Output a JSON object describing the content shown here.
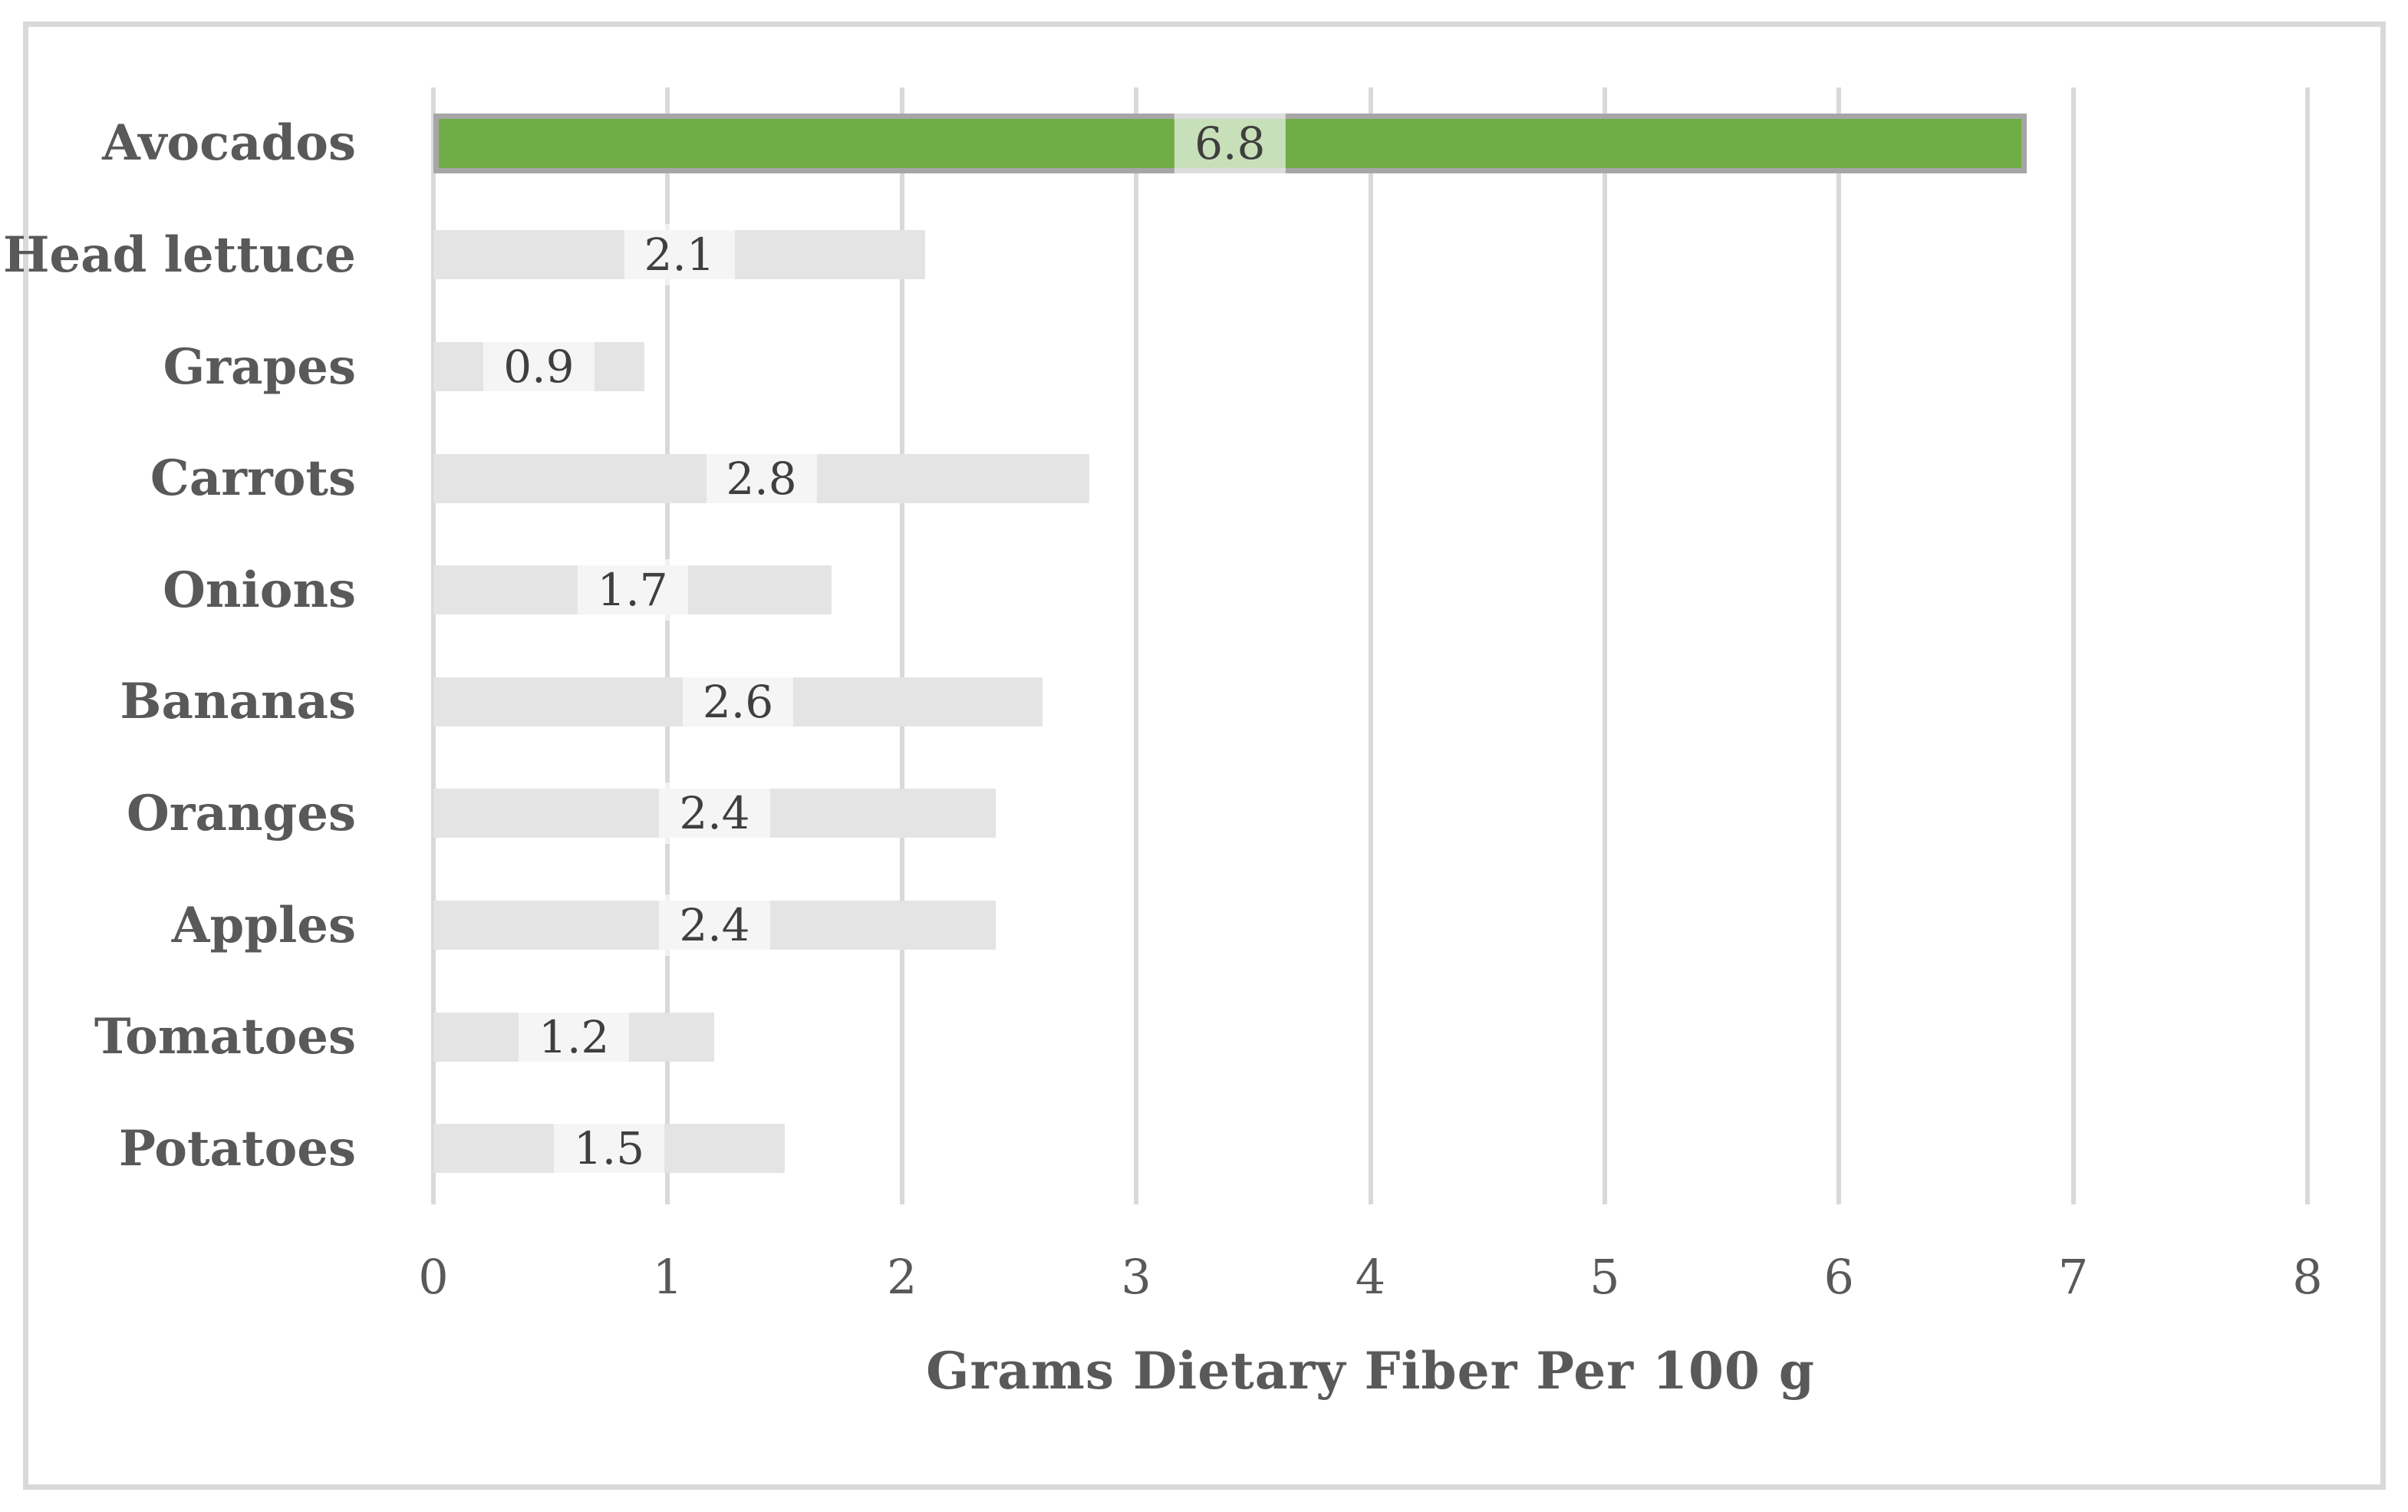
{
  "chart_data": {
    "type": "bar",
    "orientation": "horizontal",
    "xlabel": "Grams Dietary Fiber Per 100 g",
    "categories": [
      "Avocados",
      "Head lettuce",
      "Grapes",
      "Carrots",
      "Onions",
      "Bananas",
      "Oranges",
      "Apples",
      "Tomatoes",
      "Potatoes"
    ],
    "values": [
      6.8,
      2.1,
      0.9,
      2.8,
      1.7,
      2.6,
      2.4,
      2.4,
      1.2,
      1.5
    ],
    "value_labels": [
      "6.8",
      "2.1",
      "0.9",
      "2.8",
      "1.7",
      "2.6",
      "2.4",
      "2.4",
      "1.2",
      "1.5"
    ],
    "xlim": [
      0,
      8
    ],
    "xticks": [
      "0",
      "1",
      "2",
      "3",
      "4",
      "5",
      "6",
      "7",
      "8"
    ],
    "grid": "vertical-on",
    "legend": "none",
    "highlight_category": "Avocados",
    "colors": {
      "highlight_bar": "#70AD47",
      "highlight_bar_border": "#A6A6A6",
      "default_bar": "#E5E4E4",
      "gridline": "#D9D9D9",
      "frame_border": "#D9D9D9",
      "axis_text": "#595959",
      "data_label_text": "#3F3F3F",
      "data_label_background": "rgba(255,255,255,0.62)"
    }
  }
}
